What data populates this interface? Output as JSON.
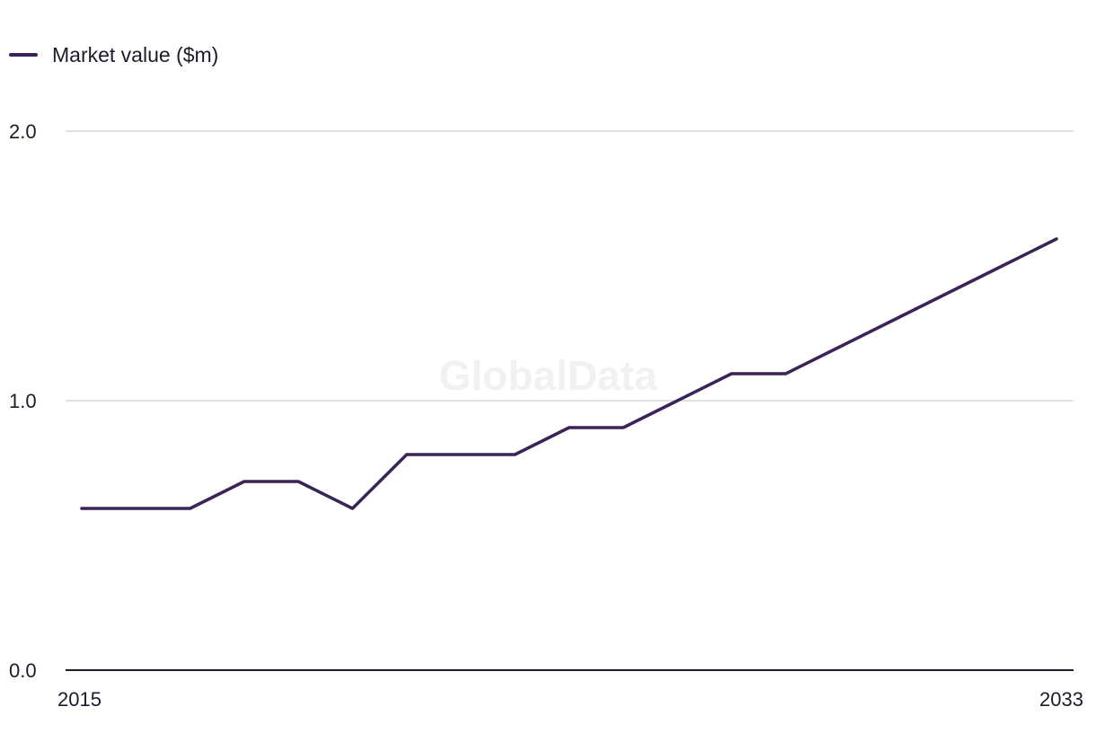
{
  "legend": {
    "label": "Market value ($m)"
  },
  "watermark": {
    "text": "GlobalData"
  },
  "colors": {
    "series": "#3a2456",
    "grid": "#d9d9dc",
    "axis": "#1f1a2b",
    "text": "#1f1a2b"
  },
  "chart_data": {
    "type": "line",
    "x": [
      2015,
      2016,
      2017,
      2018,
      2019,
      2020,
      2021,
      2022,
      2023,
      2024,
      2025,
      2026,
      2027,
      2028,
      2029,
      2030,
      2031,
      2032,
      2033
    ],
    "series": [
      {
        "name": "Market value ($m)",
        "values": [
          0.6,
          0.6,
          0.6,
          0.7,
          0.7,
          0.6,
          0.8,
          0.8,
          0.8,
          0.9,
          0.9,
          1.0,
          1.1,
          1.1,
          1.2,
          1.3,
          1.4,
          1.5,
          1.6
        ]
      }
    ],
    "xlim": [
      2015,
      2033
    ],
    "ylim": [
      0,
      2
    ],
    "x_tick_labels": [
      "2015",
      "2033"
    ],
    "y_tick_labels": [
      "0.0",
      "1.0",
      "2.0"
    ],
    "y_ticks": [
      0,
      1,
      2
    ],
    "grid": true,
    "legend_position": "top-left"
  }
}
